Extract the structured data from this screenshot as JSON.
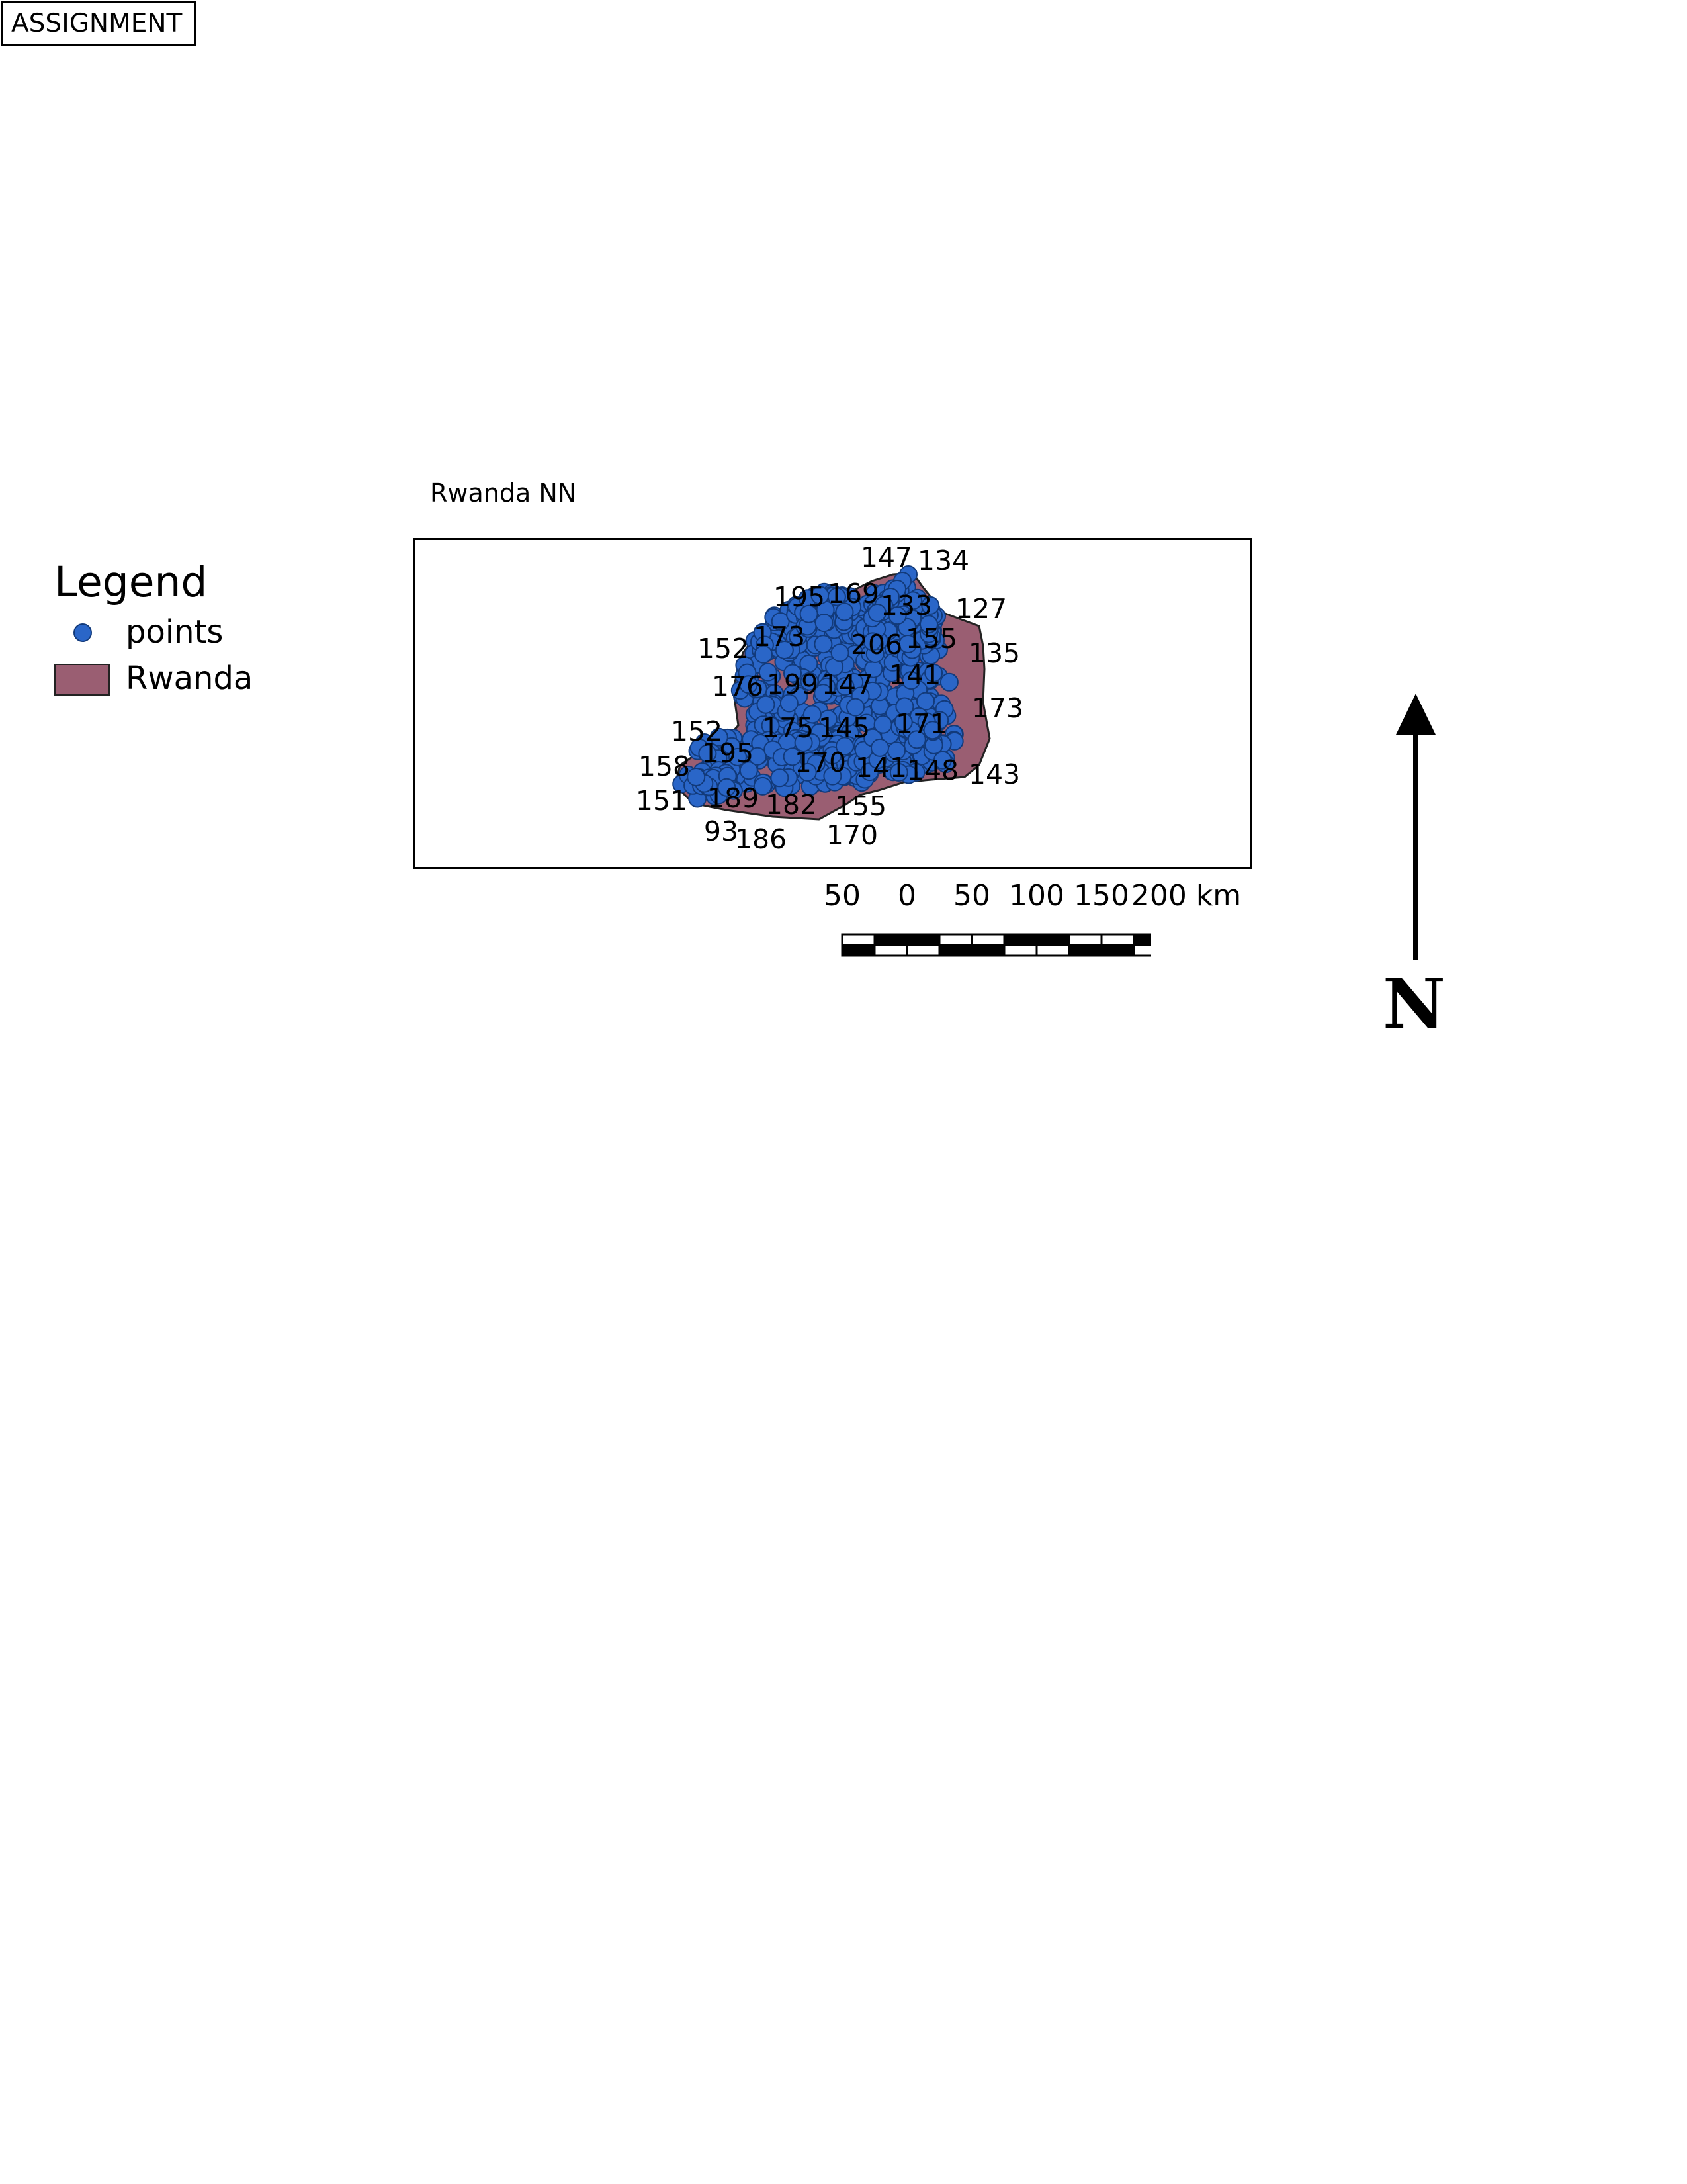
{
  "header": {
    "label": "ASSIGNMENT"
  },
  "map": {
    "title": "Rwanda NN",
    "layers": [
      {
        "name": "points",
        "color": "#2a66c8",
        "stroke": "#123a7a"
      },
      {
        "name": "Rwanda",
        "color": "#9a5e72",
        "stroke": "#222222"
      }
    ],
    "point_labels": [
      "147",
      "134",
      "195",
      "169",
      "133",
      "127",
      "173",
      "152",
      "206",
      "155",
      "135",
      "176",
      "199",
      "147",
      "141",
      "152",
      "175",
      "145",
      "171",
      "173",
      "158",
      "195",
      "170",
      "141",
      "148",
      "143",
      "151",
      "189",
      "182",
      "155",
      "93",
      "186",
      "170"
    ]
  },
  "legend": {
    "title": "Legend",
    "items": [
      {
        "label": "points",
        "icon": "point-symbol-icon"
      },
      {
        "label": "Rwanda",
        "icon": "polygon-symbol-icon"
      }
    ]
  },
  "scale_bar": {
    "labels": [
      "50",
      "0",
      "50",
      "100",
      "150",
      "200 km"
    ]
  },
  "north_arrow": {
    "letter": "N"
  }
}
